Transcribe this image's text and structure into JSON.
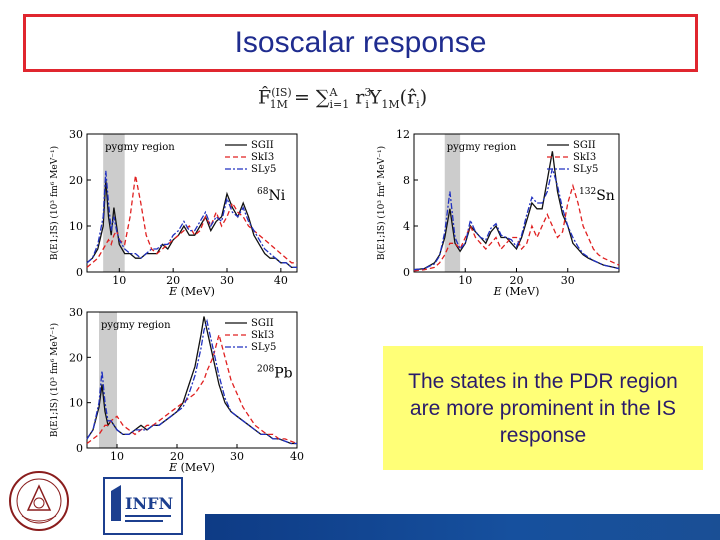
{
  "slide": {
    "title": "Isoscalar response",
    "formula": {
      "lhs": "F̂",
      "lhs_sup": "(IS)",
      "lhs_sub": "1M",
      "eq": " = ",
      "sum": "∑",
      "sum_top": "A",
      "sum_bottom": "i=1",
      "r": " r",
      "r_sub": "i",
      "r_sup": "3",
      "Y": "Y",
      "Y_sub": "1M",
      "arg": "(r̂",
      "arg_sub": "i",
      "arg_end": ")"
    },
    "callout": "The states in the PDR region are more prominent in the IS response",
    "colors": {
      "title": "#1f2c8f",
      "title_border": "#e0262f",
      "callout_bg": "#ffff77",
      "sgii": "#111111",
      "ski3": "#e02020",
      "sly5": "#2030c0",
      "pygmy_band": "#cccccc"
    }
  },
  "chart_data": [
    {
      "type": "line",
      "nucleus_mass": "68",
      "nucleus_symbol": "Ni",
      "region_label": "pygmy region",
      "xlabel_var": "E",
      "xlabel_unit": "(MeV)",
      "ylabel": "B(E1;IS) (10³ fm⁶ MeV⁻¹)",
      "xlim": [
        4,
        43
      ],
      "ylim": [
        0,
        30
      ],
      "xticks": [
        10,
        20,
        30,
        40
      ],
      "yticks": [
        0,
        10,
        20,
        30
      ],
      "pygmy_band": [
        7,
        11
      ],
      "legend": [
        "SGII",
        "SkI3",
        "SLy5"
      ],
      "series": [
        {
          "name": "SGII",
          "x": [
            4,
            5,
            6,
            7,
            7.5,
            8,
            8.5,
            9,
            9.5,
            10,
            11,
            12,
            13,
            14,
            15,
            16,
            17,
            18,
            19,
            20,
            21,
            22,
            23,
            24,
            25,
            26,
            27,
            28,
            29,
            30,
            31,
            32,
            33,
            34,
            35,
            36,
            37,
            38,
            39,
            40,
            41,
            42,
            43
          ],
          "y": [
            2,
            3,
            5,
            10,
            20,
            12,
            8,
            14,
            10,
            6,
            4,
            4,
            3,
            3,
            4,
            4,
            4,
            6,
            5,
            7,
            8,
            10,
            8,
            8,
            10,
            12,
            9,
            11,
            12,
            17,
            14,
            12,
            15,
            12,
            8,
            6,
            4,
            3,
            3,
            2,
            2,
            1,
            1
          ]
        },
        {
          "name": "SkI3",
          "x": [
            4,
            5,
            6,
            7,
            7.5,
            8,
            8.5,
            9,
            9.5,
            10,
            11,
            12,
            13,
            14,
            15,
            16,
            17,
            18,
            19,
            20,
            21,
            22,
            23,
            24,
            25,
            26,
            27,
            28,
            29,
            30,
            31,
            32,
            33,
            34,
            35,
            36,
            37,
            38,
            39,
            40,
            41,
            42,
            43
          ],
          "y": [
            1,
            2,
            3,
            5,
            6,
            7,
            6,
            8,
            9,
            7,
            6,
            12,
            21,
            15,
            8,
            5,
            4,
            5,
            6,
            7,
            8,
            9,
            10,
            8,
            9,
            12,
            10,
            13,
            10,
            12,
            15,
            13,
            12,
            10,
            9,
            8,
            7,
            6,
            5,
            4,
            3,
            2,
            2
          ]
        },
        {
          "name": "SLy5",
          "x": [
            4,
            5,
            6,
            7,
            7.5,
            8,
            8.5,
            9,
            9.5,
            10,
            11,
            12,
            13,
            14,
            15,
            16,
            17,
            18,
            19,
            20,
            21,
            22,
            23,
            24,
            25,
            26,
            27,
            28,
            29,
            30,
            31,
            32,
            33,
            34,
            35,
            36,
            37,
            38,
            39,
            40,
            41,
            42,
            43
          ],
          "y": [
            2,
            3,
            6,
            12,
            22,
            15,
            9,
            12,
            9,
            7,
            5,
            4,
            4,
            3,
            4,
            5,
            5,
            6,
            6,
            8,
            9,
            11,
            9,
            9,
            11,
            13,
            10,
            12,
            11,
            16,
            13,
            12,
            14,
            11,
            9,
            7,
            5,
            4,
            3,
            2,
            2,
            1,
            1
          ]
        }
      ]
    },
    {
      "type": "line",
      "nucleus_mass": "132",
      "nucleus_symbol": "Sn",
      "region_label": "pygmy region",
      "xlabel_var": "E",
      "xlabel_unit": "(MeV)",
      "ylabel": "B(E1;IS) (10³ fm⁶ MeV⁻¹)",
      "xlim": [
        0,
        40
      ],
      "ylim": [
        0,
        12
      ],
      "xticks": [
        10,
        20,
        30
      ],
      "yticks": [
        0,
        4,
        8,
        12
      ],
      "pygmy_band": [
        6,
        9
      ],
      "legend": [
        "SGII",
        "SkI3",
        "SLy5"
      ],
      "series": [
        {
          "name": "SGII",
          "x": [
            0,
            2,
            4,
            5,
            6,
            7,
            8,
            9,
            10,
            11,
            12,
            13,
            14,
            15,
            16,
            17,
            18,
            19,
            20,
            21,
            22,
            23,
            24,
            25,
            26,
            27,
            28,
            29,
            30,
            31,
            32,
            33,
            34,
            35,
            36,
            37,
            38,
            39,
            40
          ],
          "y": [
            0.2,
            0.3,
            0.8,
            1.5,
            3,
            5.5,
            2.5,
            1.8,
            2.5,
            4,
            3.5,
            3,
            2.5,
            3.5,
            4,
            3,
            3,
            2.5,
            2,
            3,
            4.5,
            6,
            5.5,
            5.5,
            8,
            10.5,
            7,
            5,
            4,
            2.5,
            2,
            1.5,
            1.2,
            1,
            0.8,
            0.6,
            0.5,
            0.4,
            0.3
          ]
        },
        {
          "name": "SkI3",
          "x": [
            0,
            2,
            4,
            5,
            6,
            7,
            8,
            9,
            10,
            11,
            12,
            13,
            14,
            15,
            16,
            17,
            18,
            19,
            20,
            21,
            22,
            23,
            24,
            25,
            26,
            27,
            28,
            29,
            30,
            31,
            32,
            33,
            34,
            35,
            36,
            37,
            38,
            39,
            40
          ],
          "y": [
            0.1,
            0.2,
            0.4,
            0.8,
            1.5,
            2.5,
            2.5,
            2,
            3,
            4,
            3,
            2.5,
            2,
            2.5,
            3,
            2,
            2.5,
            3,
            3,
            2,
            2.5,
            4,
            3,
            4,
            5,
            4,
            3,
            3.5,
            6,
            7.5,
            6,
            4,
            3,
            2,
            1.5,
            1.2,
            1,
            0.8,
            0.6
          ]
        },
        {
          "name": "SLy5",
          "x": [
            0,
            2,
            4,
            5,
            6,
            7,
            8,
            9,
            10,
            11,
            12,
            13,
            14,
            15,
            16,
            17,
            18,
            19,
            20,
            21,
            22,
            23,
            24,
            25,
            26,
            27,
            28,
            29,
            30,
            31,
            32,
            33,
            34,
            35,
            36,
            37,
            38,
            39,
            40
          ],
          "y": [
            0.2,
            0.3,
            0.7,
            1.4,
            3.5,
            7,
            3,
            2,
            2.5,
            4.5,
            3.5,
            3,
            2.8,
            3.8,
            4.2,
            3.2,
            3,
            2.8,
            2.2,
            3.2,
            5,
            6.5,
            6,
            6,
            7,
            9,
            7.5,
            5.5,
            4,
            3,
            2.2,
            1.6,
            1.3,
            1,
            0.8,
            0.6,
            0.5,
            0.4,
            0.3
          ]
        }
      ]
    },
    {
      "type": "line",
      "nucleus_mass": "208",
      "nucleus_symbol": "Pb",
      "region_label": "pygmy region",
      "xlabel_var": "E",
      "xlabel_unit": "(MeV)",
      "ylabel": "B(E1;IS) (10³ fm⁶ MeV⁻¹)",
      "xlim": [
        5,
        40
      ],
      "ylim": [
        0,
        30
      ],
      "xticks": [
        10,
        20,
        30,
        40
      ],
      "yticks": [
        0,
        10,
        20,
        30
      ],
      "pygmy_band": [
        7,
        10
      ],
      "legend": [
        "SGII",
        "SkI3",
        "SLy5"
      ],
      "series": [
        {
          "name": "SGII",
          "x": [
            5,
            6,
            7,
            7.5,
            8,
            8.5,
            9,
            10,
            11,
            12,
            13,
            14,
            15,
            16,
            17,
            18,
            19,
            20,
            21,
            22,
            23,
            24,
            24.5,
            25,
            26,
            27,
            28,
            29,
            30,
            31,
            32,
            33,
            34,
            35,
            36,
            37,
            38,
            39,
            40
          ],
          "y": [
            2,
            4,
            9,
            14,
            8,
            5,
            6,
            4,
            3,
            3,
            4,
            5,
            4,
            5,
            5,
            6,
            7,
            8,
            10,
            14,
            18,
            25,
            29,
            26,
            20,
            14,
            10,
            8,
            7,
            6,
            5,
            4,
            3,
            3,
            2,
            2,
            1.5,
            1,
            1
          ]
        },
        {
          "name": "SkI3",
          "x": [
            5,
            6,
            7,
            7.5,
            8,
            8.5,
            9,
            10,
            11,
            12,
            13,
            14,
            15,
            16,
            17,
            18,
            19,
            20,
            21,
            22,
            23,
            24,
            24.5,
            25,
            26,
            27,
            28,
            29,
            30,
            31,
            32,
            33,
            34,
            35,
            36,
            37,
            38,
            39,
            40
          ],
          "y": [
            1,
            2,
            3,
            4,
            5,
            5,
            6,
            7,
            5,
            4,
            3,
            4,
            5,
            5,
            6,
            7,
            8,
            9,
            10,
            11,
            12,
            14,
            15,
            17,
            20,
            25,
            20,
            15,
            12,
            9,
            7,
            5,
            4,
            3,
            3,
            2,
            2,
            1.5,
            1
          ]
        },
        {
          "name": "SLy5",
          "x": [
            5,
            6,
            7,
            7.5,
            8,
            8.5,
            9,
            10,
            11,
            12,
            13,
            14,
            15,
            16,
            17,
            18,
            19,
            20,
            21,
            22,
            23,
            24,
            24.5,
            25,
            26,
            27,
            28,
            29,
            30,
            31,
            32,
            33,
            34,
            35,
            36,
            37,
            38,
            39,
            40
          ],
          "y": [
            2,
            4,
            10,
            17,
            10,
            6,
            6,
            4,
            3,
            3,
            4,
            4,
            4,
            5,
            5,
            6,
            7,
            8,
            9,
            12,
            16,
            22,
            26,
            28,
            22,
            16,
            11,
            8,
            7,
            6,
            5,
            4,
            3,
            3,
            2,
            2,
            1.5,
            1,
            1
          ]
        }
      ]
    }
  ]
}
